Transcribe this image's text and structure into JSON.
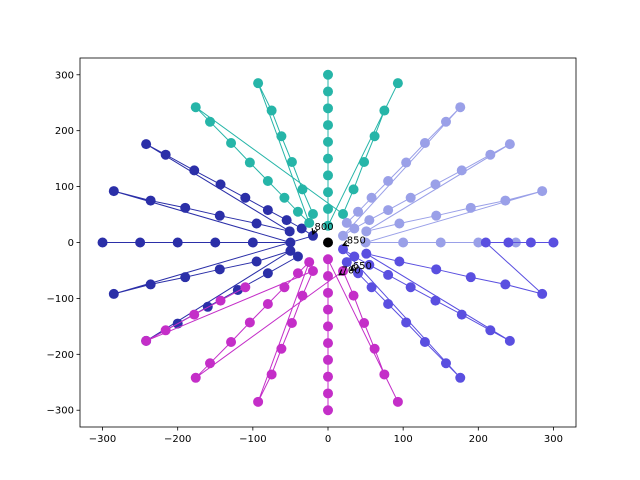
{
  "chart_data": {
    "type": "line",
    "xlim": [
      -330,
      330
    ],
    "ylim": [
      -330,
      330
    ],
    "xticks": [
      -300,
      -200,
      -100,
      0,
      100,
      200,
      300
    ],
    "yticks": [
      -300,
      -200,
      -100,
      0,
      100,
      200,
      300
    ],
    "xtick_labels": [
      "−300",
      "−200",
      "−100",
      "0",
      "100",
      "200",
      "300"
    ],
    "ytick_labels": [
      "−300",
      "−200",
      "−100",
      "0",
      "100",
      "200",
      "300"
    ],
    "grid": false,
    "series": [
      {
        "color": "#2b2fa8",
        "points": [
          [
            -300,
            0
          ],
          [
            -250,
            0
          ],
          [
            -200,
            0
          ],
          [
            -150,
            0
          ],
          [
            -100,
            0
          ],
          [
            -50,
            0
          ],
          [
            -285,
            92
          ],
          [
            -236,
            75
          ],
          [
            -190,
            62
          ],
          [
            -144,
            48
          ],
          [
            -95,
            34
          ],
          [
            -51,
            20
          ],
          [
            -242,
            176
          ],
          [
            -216,
            157
          ],
          [
            -178,
            129
          ],
          [
            -143,
            104
          ],
          [
            -110,
            80
          ],
          [
            -80,
            58
          ],
          [
            -55,
            40
          ],
          [
            -35,
            25
          ],
          [
            -20,
            12
          ],
          [
            -285,
            -92
          ],
          [
            -236,
            -75
          ],
          [
            -190,
            -62
          ],
          [
            -144,
            -48
          ],
          [
            -95,
            -34
          ],
          [
            -50,
            -15
          ],
          [
            -242,
            -176
          ],
          [
            -200,
            -145
          ],
          [
            -160,
            -115
          ],
          [
            -120,
            -85
          ],
          [
            -80,
            -55
          ],
          [
            -40,
            -25
          ]
        ]
      },
      {
        "color": "#26b5a8",
        "points": [
          [
            0,
            300
          ],
          [
            0,
            270
          ],
          [
            0,
            240
          ],
          [
            0,
            210
          ],
          [
            0,
            180
          ],
          [
            0,
            150
          ],
          [
            0,
            120
          ],
          [
            0,
            90
          ],
          [
            0,
            60
          ],
          [
            0,
            30
          ],
          [
            93,
            285
          ],
          [
            75,
            236
          ],
          [
            62,
            190
          ],
          [
            48,
            144
          ],
          [
            34,
            95
          ],
          [
            20,
            51
          ],
          [
            -176,
            242
          ],
          [
            -157,
            216
          ],
          [
            -129,
            178
          ],
          [
            -104,
            143
          ],
          [
            -80,
            110
          ],
          [
            -58,
            80
          ],
          [
            -40,
            55
          ],
          [
            -25,
            35
          ],
          [
            -93,
            285
          ],
          [
            -75,
            236
          ],
          [
            -62,
            190
          ],
          [
            -48,
            144
          ],
          [
            -34,
            95
          ],
          [
            -20,
            51
          ]
        ]
      },
      {
        "color": "#9aa0e8",
        "points": [
          [
            300,
            0
          ],
          [
            250,
            0
          ],
          [
            200,
            0
          ],
          [
            150,
            0
          ],
          [
            100,
            0
          ],
          [
            50,
            0
          ],
          [
            285,
            92
          ],
          [
            236,
            75
          ],
          [
            190,
            62
          ],
          [
            144,
            48
          ],
          [
            95,
            34
          ],
          [
            51,
            20
          ],
          [
            242,
            176
          ],
          [
            216,
            157
          ],
          [
            178,
            129
          ],
          [
            143,
            104
          ],
          [
            110,
            80
          ],
          [
            80,
            58
          ],
          [
            55,
            40
          ],
          [
            35,
            25
          ],
          [
            20,
            12
          ],
          [
            176,
            242
          ],
          [
            157,
            216
          ],
          [
            129,
            178
          ],
          [
            104,
            143
          ],
          [
            80,
            110
          ],
          [
            58,
            80
          ],
          [
            40,
            55
          ],
          [
            25,
            35
          ]
        ]
      },
      {
        "color": "#5a4fe0",
        "points": [
          [
            300,
            0
          ],
          [
            270,
            0
          ],
          [
            240,
            0
          ],
          [
            210,
            0
          ],
          [
            285,
            -92
          ],
          [
            236,
            -75
          ],
          [
            190,
            -62
          ],
          [
            144,
            -48
          ],
          [
            95,
            -34
          ],
          [
            51,
            -20
          ],
          [
            242,
            -176
          ],
          [
            216,
            -157
          ],
          [
            178,
            -129
          ],
          [
            143,
            -104
          ],
          [
            110,
            -80
          ],
          [
            80,
            -58
          ],
          [
            55,
            -40
          ],
          [
            35,
            -25
          ],
          [
            20,
            -12
          ],
          [
            176,
            -242
          ],
          [
            157,
            -216
          ],
          [
            129,
            -178
          ],
          [
            104,
            -143
          ],
          [
            80,
            -110
          ],
          [
            58,
            -80
          ],
          [
            40,
            -55
          ],
          [
            25,
            -35
          ]
        ]
      },
      {
        "color": "#c42ec8",
        "points": [
          [
            0,
            -300
          ],
          [
            0,
            -270
          ],
          [
            0,
            -240
          ],
          [
            0,
            -210
          ],
          [
            0,
            -180
          ],
          [
            0,
            -150
          ],
          [
            0,
            -120
          ],
          [
            0,
            -90
          ],
          [
            0,
            -60
          ],
          [
            0,
            -30
          ],
          [
            93,
            -285
          ],
          [
            75,
            -236
          ],
          [
            62,
            -190
          ],
          [
            48,
            -144
          ],
          [
            34,
            -95
          ],
          [
            20,
            -51
          ],
          [
            -176,
            -242
          ],
          [
            -157,
            -216
          ],
          [
            -129,
            -178
          ],
          [
            -104,
            -143
          ],
          [
            -80,
            -110
          ],
          [
            -58,
            -80
          ],
          [
            -40,
            -55
          ],
          [
            -25,
            -35
          ],
          [
            -93,
            -285
          ],
          [
            -75,
            -236
          ],
          [
            -62,
            -190
          ],
          [
            -48,
            -144
          ],
          [
            -34,
            -95
          ],
          [
            -20,
            -51
          ],
          [
            -242,
            -176
          ],
          [
            -216,
            -157
          ],
          [
            -178,
            -129
          ],
          [
            -143,
            -104
          ],
          [
            -110,
            -80
          ]
        ]
      }
    ],
    "center_point": [
      0,
      0
    ],
    "center_color": "#000000",
    "annotations": [
      {
        "text": "800",
        "x": -20,
        "y": 15,
        "tx": -18,
        "ty": 22
      },
      {
        "text": "850",
        "x": 20,
        "y": -5,
        "tx": 25,
        "ty": -2
      },
      {
        "text": "650",
        "x": 30,
        "y": -50,
        "tx": 33,
        "ty": -47
      },
      {
        "text": "700",
        "x": 15,
        "y": -58,
        "tx": 18,
        "ty": -55
      }
    ]
  }
}
